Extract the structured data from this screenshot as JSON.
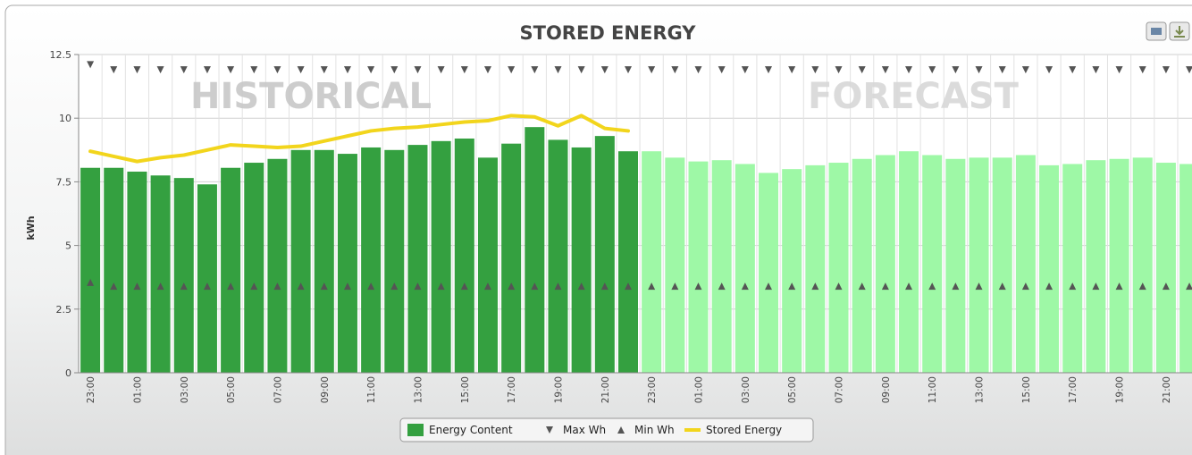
{
  "chart_data": {
    "type": "bar",
    "title": "STORED ENERGY",
    "y_label": "kWh",
    "annotations": [
      "HISTORICAL",
      "FORECAST"
    ],
    "categories": [
      "23:00",
      null,
      "01:00",
      null,
      "03:00",
      null,
      "05:00",
      null,
      "07:00",
      null,
      "09:00",
      null,
      "11:00",
      null,
      "13:00",
      null,
      "15:00",
      null,
      "17:00",
      null,
      "19:00",
      null,
      "21:00",
      null,
      "23:00",
      null,
      "01:00",
      null,
      "03:00",
      null,
      "05:00",
      null,
      "07:00",
      null,
      "09:00",
      null,
      "11:00",
      null,
      "13:00",
      null,
      "15:00",
      null,
      "17:00",
      null,
      "19:00",
      null,
      "21:00",
      null
    ],
    "ylim": [
      0,
      12.5
    ],
    "yticks": [
      0,
      2.5,
      5,
      7.5,
      10,
      12.5
    ],
    "grid": true,
    "legend": "bottom",
    "series": [
      {
        "name": "Energy Content",
        "type": "bar",
        "color": "#34a040",
        "colors": [
          "#34a040",
          "#34a040",
          "#34a040",
          "#34a040",
          "#34a040",
          "#34a040",
          "#34a040",
          "#34a040",
          "#34a040",
          "#34a040",
          "#34a040",
          "#34a040",
          "#34a040",
          "#34a040",
          "#34a040",
          "#34a040",
          "#34a040",
          "#34a040",
          "#34a040",
          "#34a040",
          "#34a040",
          "#34a040",
          "#34a040",
          "#34a040",
          "#9ef8a6",
          "#9ef8a6",
          "#9ef8a6",
          "#9ef8a6",
          "#9ef8a6",
          "#9ef8a6",
          "#9ef8a6",
          "#9ef8a6",
          "#9ef8a6",
          "#9ef8a6",
          "#9ef8a6",
          "#9ef8a6",
          "#9ef8a6",
          "#9ef8a6",
          "#9ef8a6",
          "#9ef8a6",
          "#9ef8a6",
          "#9ef8a6",
          "#9ef8a6",
          "#9ef8a6",
          "#9ef8a6",
          "#9ef8a6",
          "#9ef8a6",
          "#9ef8a6"
        ],
        "values": [
          8.05,
          8.05,
          7.9,
          7.75,
          7.65,
          7.4,
          8.05,
          8.25,
          8.4,
          8.75,
          8.75,
          8.6,
          8.85,
          8.75,
          8.95,
          9.1,
          9.2,
          8.45,
          9.0,
          9.65,
          9.15,
          8.85,
          9.3,
          8.7,
          8.7,
          8.45,
          8.3,
          8.35,
          8.2,
          7.85,
          8.0,
          8.15,
          8.25,
          8.4,
          8.55,
          8.7,
          8.55,
          8.4,
          8.45,
          8.45,
          8.55,
          8.15,
          8.2,
          8.35,
          8.4,
          8.45,
          8.25,
          8.2
        ]
      },
      {
        "name": "Max Wh",
        "type": "marker-down",
        "color": "#555555",
        "values": [
          12.1,
          11.9,
          11.9,
          11.9,
          11.9,
          11.9,
          11.9,
          11.9,
          11.9,
          11.9,
          11.9,
          11.9,
          11.9,
          11.9,
          11.9,
          11.9,
          11.9,
          11.9,
          11.9,
          11.9,
          11.9,
          11.9,
          11.9,
          11.9,
          11.9,
          11.9,
          11.9,
          11.9,
          11.9,
          11.9,
          11.9,
          11.9,
          11.9,
          11.9,
          11.9,
          11.9,
          11.9,
          11.9,
          11.9,
          11.9,
          11.9,
          11.9,
          11.9,
          11.9,
          11.9,
          11.9,
          11.9,
          11.9
        ]
      },
      {
        "name": "Min Wh",
        "type": "marker-up",
        "color": "#555555",
        "values": [
          3.55,
          3.4,
          3.4,
          3.4,
          3.4,
          3.4,
          3.4,
          3.4,
          3.4,
          3.4,
          3.4,
          3.4,
          3.4,
          3.4,
          3.4,
          3.4,
          3.4,
          3.4,
          3.4,
          3.4,
          3.4,
          3.4,
          3.4,
          3.4,
          3.4,
          3.4,
          3.4,
          3.4,
          3.4,
          3.4,
          3.4,
          3.4,
          3.4,
          3.4,
          3.4,
          3.4,
          3.4,
          3.4,
          3.4,
          3.4,
          3.4,
          3.4,
          3.4,
          3.4,
          3.4,
          3.4,
          3.4,
          3.4
        ]
      },
      {
        "name": "Stored Energy",
        "type": "line",
        "color": "#f2d51c",
        "values": [
          8.7,
          8.5,
          8.3,
          8.45,
          8.55,
          8.75,
          8.95,
          8.9,
          8.85,
          8.9,
          9.1,
          9.3,
          9.5,
          9.6,
          9.65,
          9.75,
          9.85,
          9.9,
          10.1,
          10.05,
          9.7,
          10.1,
          9.6,
          9.5,
          null,
          null,
          null,
          null,
          null,
          null,
          null,
          null,
          null,
          null,
          null,
          null,
          null,
          null,
          null,
          null,
          null,
          null,
          null,
          null,
          null,
          null,
          null,
          null
        ]
      }
    ]
  }
}
